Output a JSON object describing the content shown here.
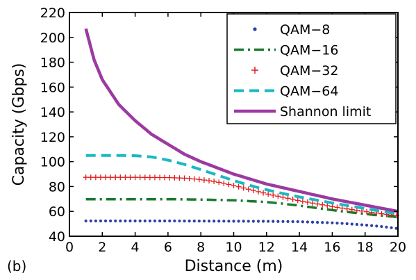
{
  "panel_label": "(b)",
  "chart_data": {
    "type": "line",
    "xlabel": "Distance (m)",
    "ylabel": "Capacity (Gbps)",
    "xlim": [
      0,
      20
    ],
    "ylim": [
      40,
      220
    ],
    "xticks": [
      0,
      2,
      4,
      6,
      8,
      10,
      12,
      14,
      16,
      18,
      20
    ],
    "yticks": [
      40,
      60,
      80,
      100,
      120,
      140,
      160,
      180,
      200,
      220
    ],
    "grid": false,
    "legend_position": "top-right",
    "series": [
      {
        "name": "QAM−8",
        "color": "#2b3fa8",
        "style": "dots",
        "x": [
          1,
          2,
          4,
          6,
          8,
          10,
          12,
          14,
          16,
          17,
          18,
          19,
          20
        ],
        "y": [
          52.3,
          52.3,
          52.3,
          52.3,
          52.2,
          52.1,
          52.0,
          51.7,
          50.8,
          50.0,
          49.0,
          47.8,
          46.2
        ]
      },
      {
        "name": "QAM−16",
        "color": "#1a7a2e",
        "style": "dashdot",
        "x": [
          1,
          2,
          4,
          6,
          8,
          10,
          12,
          13,
          14,
          15,
          16,
          17,
          18,
          19,
          20
        ],
        "y": [
          69.8,
          69.8,
          69.8,
          69.8,
          69.5,
          68.9,
          67.5,
          66.2,
          64.6,
          62.8,
          61.0,
          59.4,
          57.9,
          56.6,
          55.4
        ]
      },
      {
        "name": "QAM−32",
        "color": "#e11b1b",
        "style": "plus",
        "x": [
          1,
          2,
          4,
          6,
          7,
          8,
          9,
          10,
          11,
          12,
          13,
          14,
          15,
          16,
          17,
          18,
          19,
          20
        ],
        "y": [
          87.4,
          87.4,
          87.4,
          87.2,
          86.7,
          85.6,
          83.7,
          80.8,
          77.5,
          74.2,
          71.3,
          68.6,
          66.2,
          63.9,
          61.8,
          59.9,
          58.1,
          56.4
        ]
      },
      {
        "name": "QAM−64",
        "color": "#1ab8c4",
        "style": "dashed",
        "x": [
          1,
          2,
          3,
          4,
          5,
          6,
          7,
          8,
          9,
          10,
          11,
          12,
          13,
          14,
          15,
          16,
          17,
          18,
          19,
          20
        ],
        "y": [
          105.0,
          105.0,
          105.0,
          104.8,
          103.8,
          101.2,
          97.8,
          93.6,
          89.2,
          84.8,
          80.8,
          77.4,
          74.4,
          71.6,
          69.2,
          66.8,
          64.5,
          62.3,
          60.1,
          58.0
        ]
      },
      {
        "name": "Shannon limit",
        "color": "#9b3aa0",
        "style": "solid",
        "x": [
          1,
          1.5,
          2,
          3,
          4,
          5,
          6,
          7,
          8,
          9,
          10,
          11,
          12,
          13,
          14,
          15,
          16,
          17,
          18,
          19,
          20
        ],
        "y": [
          207,
          182,
          166,
          146,
          133,
          122,
          114,
          106,
          100,
          95,
          90,
          86,
          82,
          79,
          76,
          73,
          70,
          67.5,
          65,
          62.5,
          60
        ]
      }
    ]
  }
}
